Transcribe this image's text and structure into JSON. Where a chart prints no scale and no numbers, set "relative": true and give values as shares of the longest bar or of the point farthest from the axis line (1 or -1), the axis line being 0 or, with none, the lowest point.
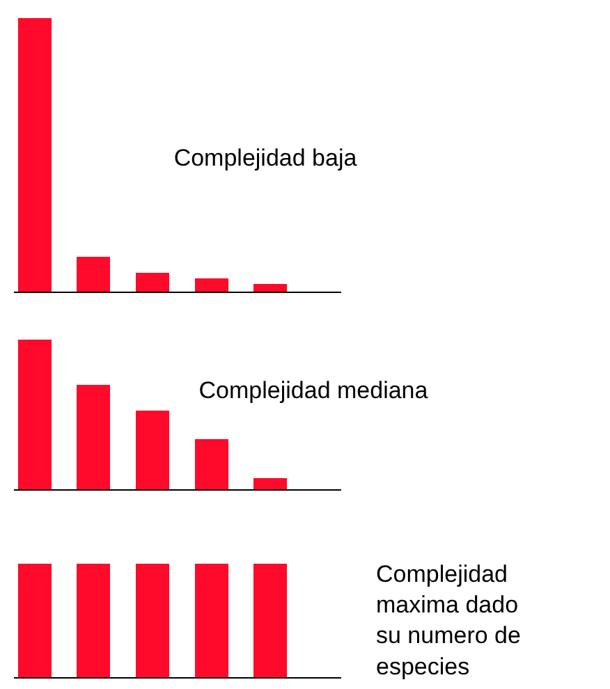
{
  "chart_data": [
    {
      "type": "bar",
      "relative": true,
      "title": "Complejidad baja",
      "categories": [
        null,
        null,
        null,
        null,
        null
      ],
      "values": [
        1,
        0.13,
        0.07,
        0.05,
        0.03
      ],
      "color": "#ff0a2a"
    },
    {
      "type": "bar",
      "relative": true,
      "title": "Complejidad mediana",
      "categories": [
        null,
        null,
        null,
        null,
        null
      ],
      "values": [
        1,
        0.7,
        0.53,
        0.34,
        0.08
      ],
      "color": "#ff0a2a"
    },
    {
      "type": "bar",
      "relative": true,
      "annotations": [
        "Complejidad\nmaxima dado\nsu numero de\nespecies"
      ],
      "categories": [
        null,
        null,
        null,
        null,
        null
      ],
      "values": [
        1,
        1,
        1,
        1,
        1
      ],
      "color": "#ff0a2a"
    }
  ]
}
